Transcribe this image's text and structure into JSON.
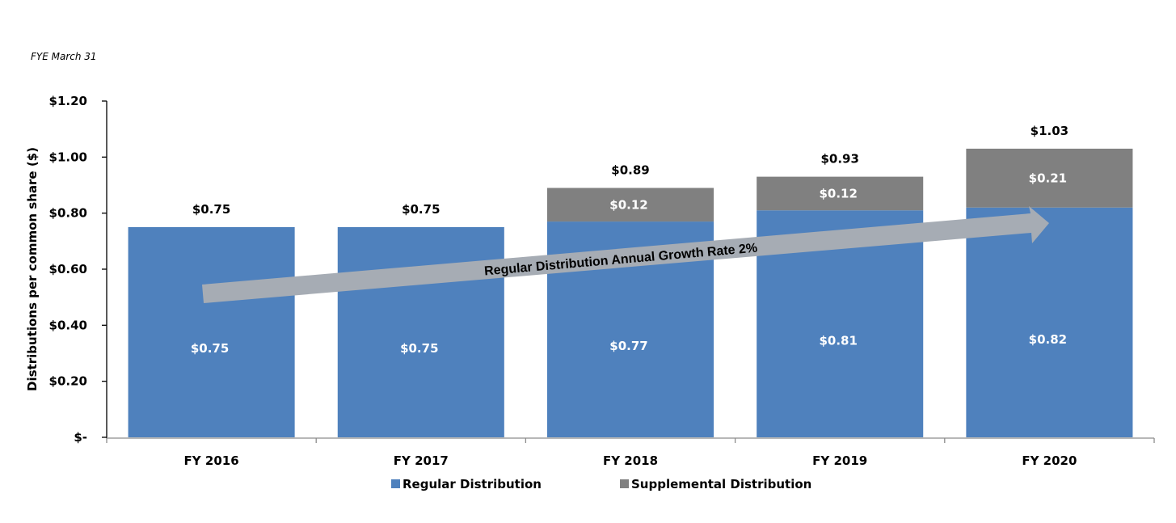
{
  "chart_data": {
    "type": "bar",
    "stacked": true,
    "note": "FYE March 31",
    "title": "",
    "xlabel": "",
    "ylabel": "Distributions per common share ($)",
    "ylim": [
      0,
      1.2
    ],
    "yticks": [
      0,
      0.2,
      0.4,
      0.6,
      0.8,
      1.0,
      1.2
    ],
    "ytick_labels": [
      "$-",
      "$0.20",
      "$0.40",
      "$0.60",
      "$0.80",
      "$1.00",
      "$1.20"
    ],
    "grid": false,
    "categories": [
      "FY 2016",
      "FY 2017",
      "FY 2018",
      "FY 2019",
      "FY 2020"
    ],
    "series": [
      {
        "name": "Regular Distribution",
        "color": "#4f81bd",
        "values": [
          0.75,
          0.75,
          0.77,
          0.81,
          0.82
        ],
        "labels": [
          "$0.75",
          "$0.75",
          "$0.77",
          "$0.81",
          "$0.82"
        ]
      },
      {
        "name": "Supplemental Distribution",
        "color": "#808080",
        "values": [
          0,
          0,
          0.12,
          0.12,
          0.21
        ],
        "labels": [
          "",
          "",
          "$0.12",
          "$0.12",
          "$0.21"
        ]
      }
    ],
    "totals": [
      0.75,
      0.75,
      0.89,
      0.93,
      1.03
    ],
    "total_labels": [
      "$0.75",
      "$0.75",
      "$0.89",
      "$0.93",
      "$1.03"
    ],
    "legend_position": "bottom",
    "annotation": {
      "text": "Regular Distribution Annual Growth Rate 2%",
      "type": "arrow",
      "color": "#a6acb4"
    }
  }
}
